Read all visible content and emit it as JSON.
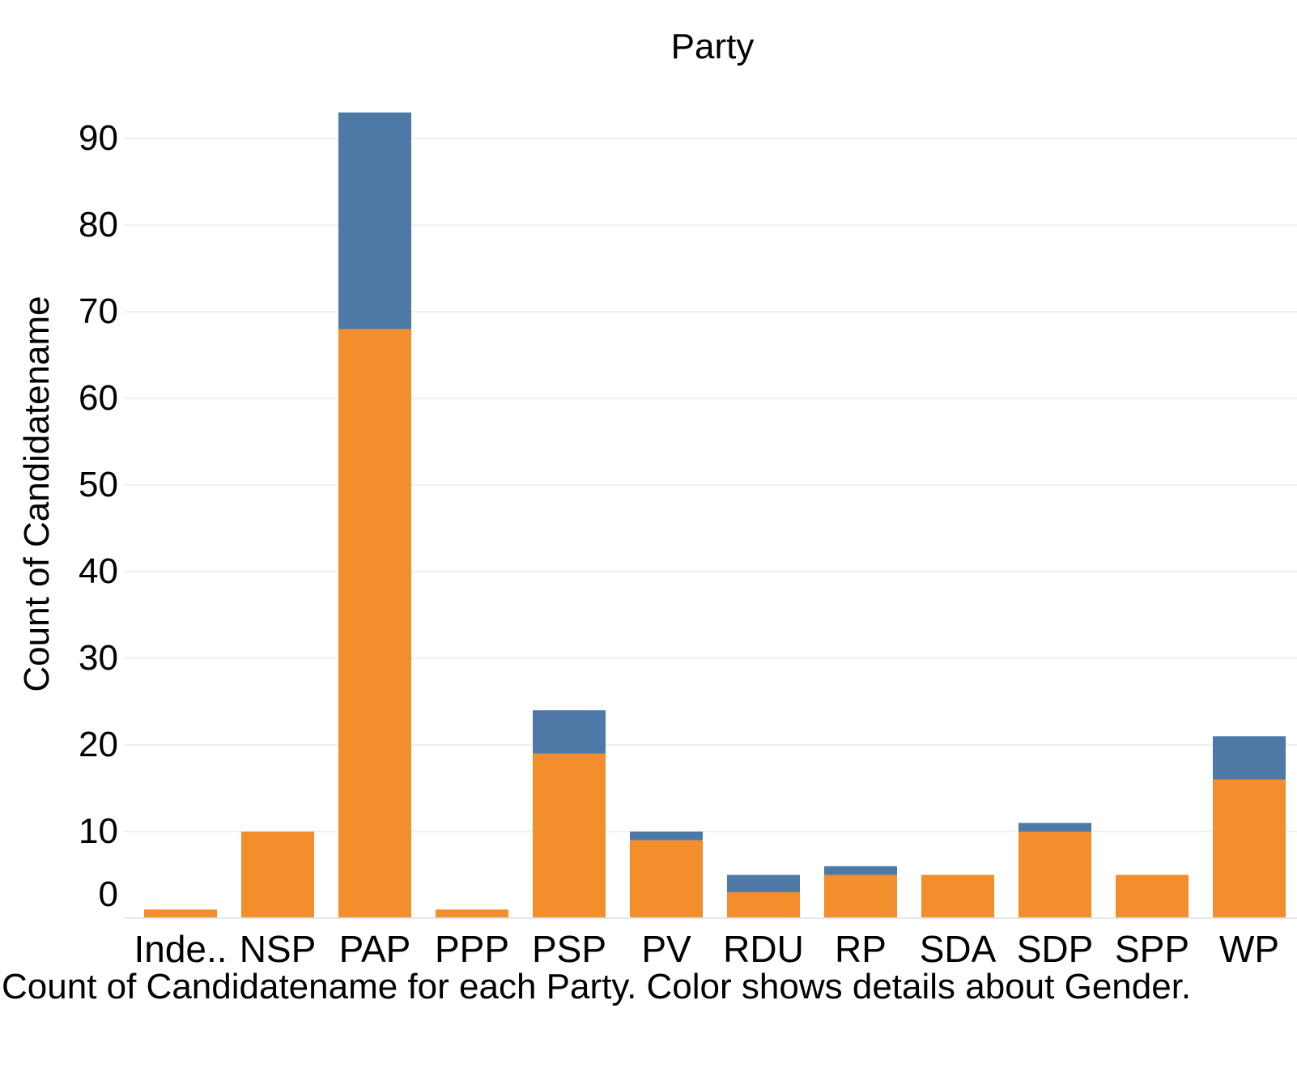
{
  "chart_data": {
    "type": "bar",
    "stacked": true,
    "title": "Party",
    "xlabel": "",
    "ylabel": "Count of Candidatename",
    "categories": [
      "Inde..",
      "NSP",
      "PAP",
      "PPP",
      "PSP",
      "PV",
      "RDU",
      "RP",
      "SDA",
      "SDP",
      "SPP",
      "WP"
    ],
    "series": [
      {
        "values": [
          1,
          10,
          68,
          1,
          19,
          9,
          3,
          5,
          5,
          10,
          5,
          16
        ],
        "color": "#F28E2B"
      },
      {
        "values": [
          0,
          0,
          25,
          0,
          5,
          1,
          2,
          1,
          0,
          1,
          0,
          5
        ],
        "color": "#4E79A7"
      }
    ],
    "y_ticks": [
      0,
      10,
      20,
      30,
      40,
      50,
      60,
      70,
      80,
      90
    ],
    "ylim": [
      0,
      95
    ],
    "grid": true,
    "legend": "none"
  },
  "caption": "Count of Candidatename for each Party.  Color shows details about Gender."
}
